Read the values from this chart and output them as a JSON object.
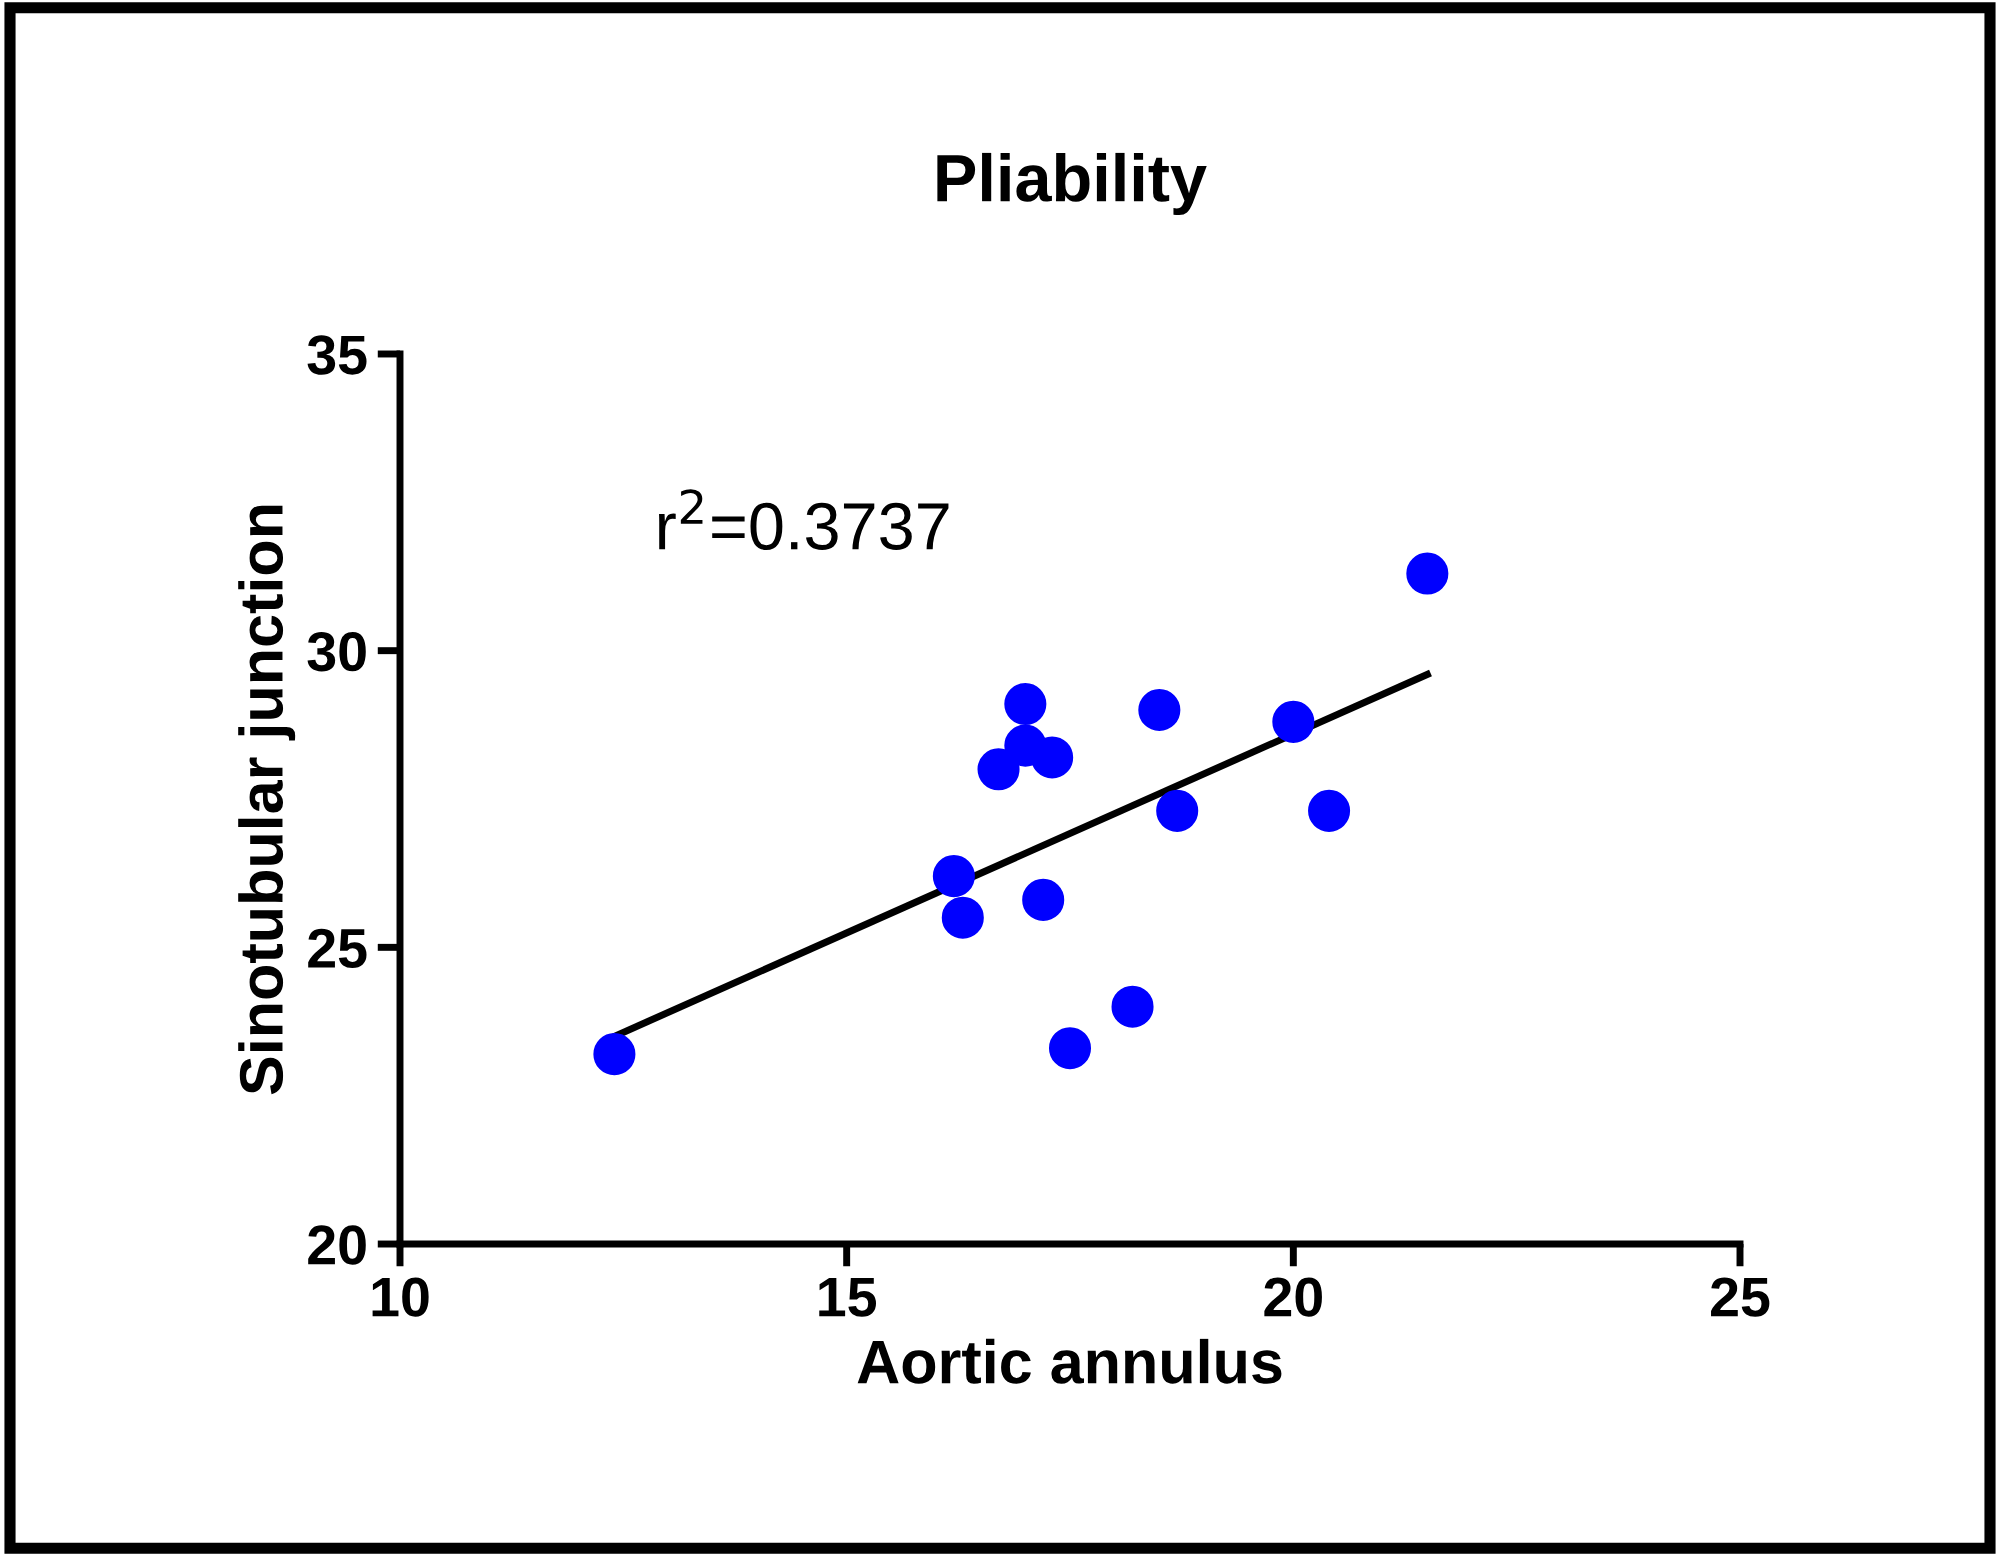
{
  "chart_data": {
    "type": "scatter",
    "title": "Pliability",
    "xlabel": "Aortic annulus",
    "ylabel": "Sinotubular junction",
    "annotations": [
      "r$^{2}$=0.3737"
    ],
    "series": [
      {
        "marker": "circle",
        "color": "#0000ff",
        "x": [
          12.4,
          16.2,
          16.3,
          16.7,
          17.0,
          17.0,
          17.3,
          17.2,
          17.5,
          18.2,
          18.5,
          18.7,
          20.0,
          20.4,
          21.5
        ],
        "values": [
          23.2,
          26.2,
          25.5,
          28.0,
          29.1,
          28.4,
          28.2,
          25.8,
          23.3,
          24.0,
          29.0,
          27.3,
          28.8,
          27.3,
          31.3
        ]
      },
      {
        "type": "line",
        "color": "#000000",
        "x": [
          12.4,
          21.5
        ],
        "values": [
          23.5,
          29.6
        ]
      }
    ],
    "xlim": [
      10,
      25
    ],
    "xticks": [
      10,
      15,
      20,
      25
    ],
    "ylim": [
      20,
      35
    ],
    "yticks": [
      20,
      25,
      30,
      35
    ],
    "grid": false,
    "legend": false
  }
}
